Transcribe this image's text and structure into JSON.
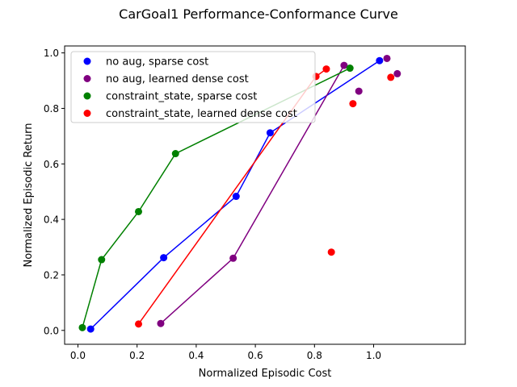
{
  "chart_data": {
    "type": "scatter",
    "title": "CarGoal1 Performance-Conformance Curve",
    "xlabel": "Normalized Episodic Cost",
    "ylabel": "Normalized Episodic Return",
    "xlim": [
      -0.045,
      1.31
    ],
    "ylim": [
      -0.05,
      1.025
    ],
    "xticks": [
      0.0,
      0.2,
      0.4,
      0.6,
      0.8,
      1.0
    ],
    "xtick_labels": [
      "0.0",
      "0.2",
      "0.4",
      "0.6",
      "0.8",
      "1.0"
    ],
    "yticks": [
      0.0,
      0.2,
      0.4,
      0.6,
      0.8,
      1.0
    ],
    "ytick_labels": [
      "0.0",
      "0.2",
      "0.4",
      "0.6",
      "0.8",
      "1.0"
    ],
    "grid": false,
    "legend_position": "top-left",
    "series": [
      {
        "name": "no aug, sparse cost",
        "color": "#0000ff",
        "points": [
          [
            0.043,
            0.005
          ],
          [
            0.29,
            0.262
          ],
          [
            0.535,
            0.483
          ],
          [
            0.65,
            0.712
          ],
          [
            1.02,
            0.972
          ]
        ],
        "line": [
          [
            0.043,
            0.005
          ],
          [
            0.29,
            0.262
          ],
          [
            0.535,
            0.483
          ],
          [
            0.65,
            0.712
          ],
          [
            1.02,
            0.972
          ]
        ]
      },
      {
        "name": "no aug, learned dense cost",
        "color": "#800080",
        "points": [
          [
            0.28,
            0.025
          ],
          [
            0.525,
            0.26
          ],
          [
            0.9,
            0.955
          ],
          [
            0.95,
            0.862
          ],
          [
            1.045,
            0.98
          ],
          [
            1.08,
            0.925
          ]
        ],
        "line": [
          [
            0.28,
            0.025
          ],
          [
            0.525,
            0.26
          ],
          [
            0.9,
            0.955
          ]
        ]
      },
      {
        "name": "constraint_state, sparse cost",
        "color": "#008000",
        "points": [
          [
            0.015,
            0.01
          ],
          [
            0.08,
            0.255
          ],
          [
            0.205,
            0.428
          ],
          [
            0.33,
            0.637
          ],
          [
            0.92,
            0.945
          ]
        ],
        "line": [
          [
            0.015,
            0.01
          ],
          [
            0.08,
            0.255
          ],
          [
            0.205,
            0.428
          ],
          [
            0.33,
            0.637
          ],
          [
            0.92,
            0.945
          ]
        ]
      },
      {
        "name": "constraint_state, learned dense cost",
        "color": "#ff0000",
        "points": [
          [
            0.205,
            0.023
          ],
          [
            0.805,
            0.915
          ],
          [
            0.84,
            0.942
          ],
          [
            0.93,
            0.817
          ],
          [
            1.058,
            0.912
          ],
          [
            0.857,
            0.282
          ]
        ],
        "line": [
          [
            0.205,
            0.023
          ],
          [
            0.805,
            0.915
          ],
          [
            0.84,
            0.942
          ]
        ]
      }
    ]
  }
}
